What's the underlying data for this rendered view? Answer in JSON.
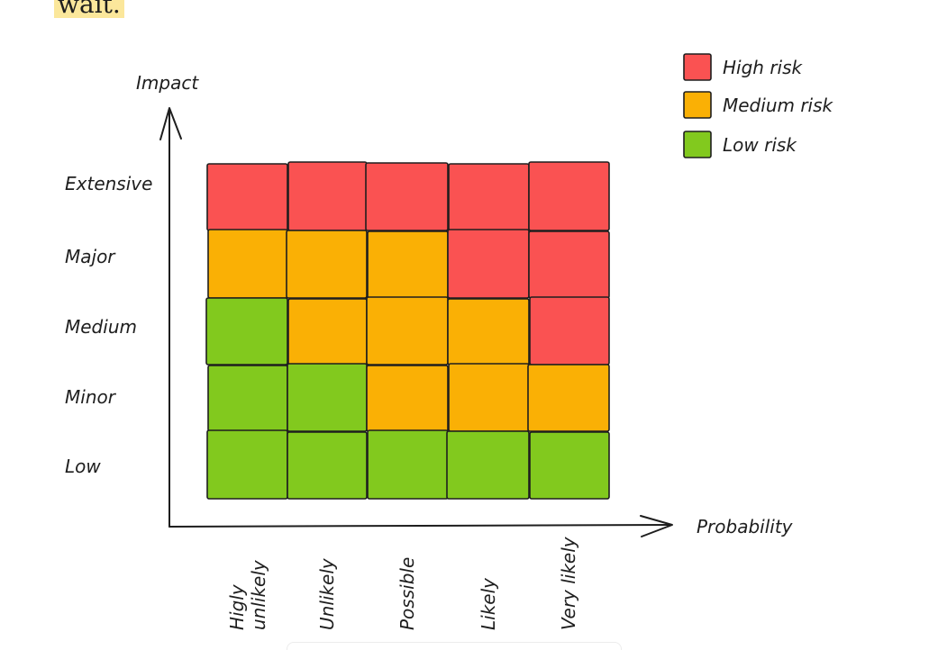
{
  "top_fragment": "wait.",
  "legend": [
    {
      "label": "High risk",
      "color": "#fa5252"
    },
    {
      "label": "Medium risk",
      "color": "#fab005"
    },
    {
      "label": "Low risk",
      "color": "#82c91e"
    }
  ],
  "axes": {
    "y_label": "Impact",
    "x_label": "Probability"
  },
  "impact_levels": [
    "Extensive",
    "Major",
    "Medium",
    "Minor",
    "Low"
  ],
  "probability_levels": [
    [
      "Higly",
      "unlikely"
    ],
    [
      "Unlikely"
    ],
    [
      "Possible"
    ],
    [
      "Likely"
    ],
    [
      "Very likely"
    ]
  ],
  "risk_matrix": [
    [
      "high",
      "high",
      "high",
      "high",
      "high"
    ],
    [
      "medium",
      "medium",
      "medium",
      "high",
      "high"
    ],
    [
      "low",
      "medium",
      "medium",
      "medium",
      "high"
    ],
    [
      "low",
      "low",
      "medium",
      "medium",
      "medium"
    ],
    [
      "low",
      "low",
      "low",
      "low",
      "low"
    ]
  ],
  "risk_colors": {
    "high": "#fa5252",
    "medium": "#fab005",
    "low": "#82c91e"
  }
}
